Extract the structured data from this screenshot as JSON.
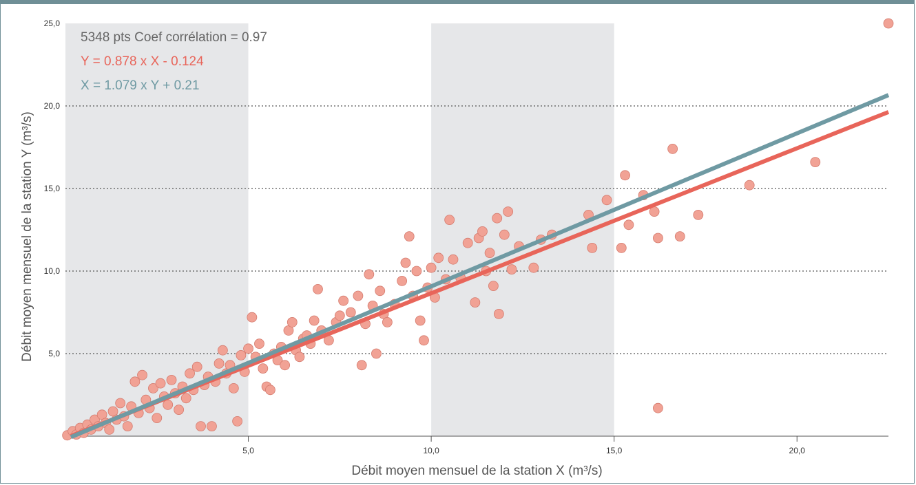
{
  "chart_data": {
    "type": "scatter",
    "xlabel": "Débit moyen mensuel de la station X (m³/s)",
    "ylabel": "Débit moyen mensuel de la station Y (m³/s)",
    "xlim": [
      0,
      22.5
    ],
    "ylim": [
      0,
      25
    ],
    "x_ticks": [
      "5,0",
      "10,0",
      "15,0",
      "20,0"
    ],
    "y_ticks": [
      "5,0",
      "10,0",
      "15,0",
      "20,0",
      "25,0"
    ],
    "shaded_x_bands": [
      [
        0,
        5
      ],
      [
        10,
        15
      ]
    ],
    "grid": "horizontal dotted",
    "annotations": [
      {
        "text_a": "5348 pts Coef corrélation",
        "text_b": " = 0.97",
        "color": "#666666"
      },
      {
        "text": "Y = 0.878 x X - 0.124",
        "color": "#e8655a"
      },
      {
        "text": "X = 1.079 x Y + 0.21",
        "color": "#6f9aa3"
      }
    ],
    "series": [
      {
        "kind": "regression",
        "slope": 0.878,
        "intercept": -0.124,
        "color": "#e8655a"
      },
      {
        "kind": "regression",
        "slope": 0.9268,
        "intercept": -0.1946,
        "color": "#6f9aa3"
      }
    ],
    "points": [
      [
        0.05,
        0.05
      ],
      [
        0.2,
        0.3
      ],
      [
        0.3,
        0.1
      ],
      [
        0.4,
        0.5
      ],
      [
        0.5,
        0.2
      ],
      [
        0.6,
        0.7
      ],
      [
        0.7,
        0.4
      ],
      [
        0.8,
        1.0
      ],
      [
        0.9,
        0.6
      ],
      [
        1.0,
        1.3
      ],
      [
        1.1,
        0.8
      ],
      [
        1.2,
        0.4
      ],
      [
        1.3,
        1.5
      ],
      [
        1.4,
        1.0
      ],
      [
        1.5,
        2.0
      ],
      [
        1.6,
        1.2
      ],
      [
        1.7,
        0.6
      ],
      [
        1.8,
        1.8
      ],
      [
        1.9,
        3.3
      ],
      [
        2.0,
        1.4
      ],
      [
        2.1,
        3.7
      ],
      [
        2.2,
        2.2
      ],
      [
        2.3,
        1.7
      ],
      [
        2.4,
        2.9
      ],
      [
        2.5,
        1.1
      ],
      [
        2.6,
        3.2
      ],
      [
        2.7,
        2.4
      ],
      [
        2.8,
        1.9
      ],
      [
        2.9,
        3.4
      ],
      [
        3.0,
        2.6
      ],
      [
        3.1,
        1.6
      ],
      [
        3.2,
        3.0
      ],
      [
        3.3,
        2.3
      ],
      [
        3.4,
        3.8
      ],
      [
        3.5,
        2.8
      ],
      [
        3.6,
        4.2
      ],
      [
        3.7,
        0.6
      ],
      [
        3.8,
        3.1
      ],
      [
        3.9,
        3.6
      ],
      [
        4.0,
        0.6
      ],
      [
        4.1,
        3.3
      ],
      [
        4.2,
        4.4
      ],
      [
        4.3,
        5.2
      ],
      [
        4.4,
        3.8
      ],
      [
        4.5,
        4.3
      ],
      [
        4.6,
        2.9
      ],
      [
        4.7,
        0.9
      ],
      [
        4.8,
        4.9
      ],
      [
        4.9,
        3.9
      ],
      [
        5.0,
        5.3
      ],
      [
        5.1,
        7.2
      ],
      [
        5.2,
        4.8
      ],
      [
        5.3,
        5.6
      ],
      [
        5.4,
        4.1
      ],
      [
        5.5,
        3.0
      ],
      [
        5.6,
        2.8
      ],
      [
        5.7,
        5.0
      ],
      [
        5.8,
        4.6
      ],
      [
        5.9,
        5.4
      ],
      [
        6.0,
        4.3
      ],
      [
        6.1,
        6.4
      ],
      [
        6.2,
        6.9
      ],
      [
        6.3,
        5.2
      ],
      [
        6.4,
        4.8
      ],
      [
        6.5,
        5.9
      ],
      [
        6.6,
        6.1
      ],
      [
        6.7,
        5.6
      ],
      [
        6.8,
        7.0
      ],
      [
        6.9,
        8.9
      ],
      [
        7.0,
        6.4
      ],
      [
        7.2,
        5.8
      ],
      [
        7.4,
        6.9
      ],
      [
        7.5,
        7.3
      ],
      [
        7.6,
        8.2
      ],
      [
        7.8,
        7.5
      ],
      [
        8.0,
        8.5
      ],
      [
        8.1,
        4.3
      ],
      [
        8.2,
        6.8
      ],
      [
        8.3,
        9.8
      ],
      [
        8.4,
        7.9
      ],
      [
        8.5,
        5.0
      ],
      [
        8.6,
        8.8
      ],
      [
        8.7,
        7.4
      ],
      [
        8.8,
        6.9
      ],
      [
        9.0,
        8.0
      ],
      [
        9.2,
        9.4
      ],
      [
        9.3,
        10.5
      ],
      [
        9.4,
        12.1
      ],
      [
        9.5,
        8.5
      ],
      [
        9.6,
        10.0
      ],
      [
        9.7,
        7.0
      ],
      [
        9.8,
        5.8
      ],
      [
        9.9,
        9.0
      ],
      [
        10.0,
        10.2
      ],
      [
        10.1,
        8.4
      ],
      [
        10.2,
        10.8
      ],
      [
        10.4,
        9.5
      ],
      [
        10.5,
        13.1
      ],
      [
        10.6,
        10.7
      ],
      [
        10.8,
        9.6
      ],
      [
        11.0,
        11.7
      ],
      [
        11.2,
        8.1
      ],
      [
        11.3,
        12.0
      ],
      [
        11.4,
        12.4
      ],
      [
        11.5,
        10.0
      ],
      [
        11.6,
        11.1
      ],
      [
        11.7,
        9.1
      ],
      [
        11.8,
        13.2
      ],
      [
        11.85,
        7.4
      ],
      [
        12.0,
        12.2
      ],
      [
        12.1,
        13.6
      ],
      [
        12.2,
        10.1
      ],
      [
        12.4,
        11.5
      ],
      [
        12.8,
        10.2
      ],
      [
        13.0,
        11.9
      ],
      [
        13.3,
        12.2
      ],
      [
        14.3,
        13.4
      ],
      [
        14.4,
        11.4
      ],
      [
        14.8,
        14.3
      ],
      [
        15.2,
        11.4
      ],
      [
        15.3,
        15.8
      ],
      [
        15.4,
        12.8
      ],
      [
        15.8,
        14.6
      ],
      [
        16.1,
        13.6
      ],
      [
        16.2,
        1.7
      ],
      [
        16.2,
        12.0
      ],
      [
        16.6,
        17.4
      ],
      [
        16.8,
        12.1
      ],
      [
        17.3,
        13.4
      ],
      [
        18.7,
        15.2
      ],
      [
        20.5,
        16.6
      ],
      [
        22.5,
        25.0
      ]
    ]
  }
}
